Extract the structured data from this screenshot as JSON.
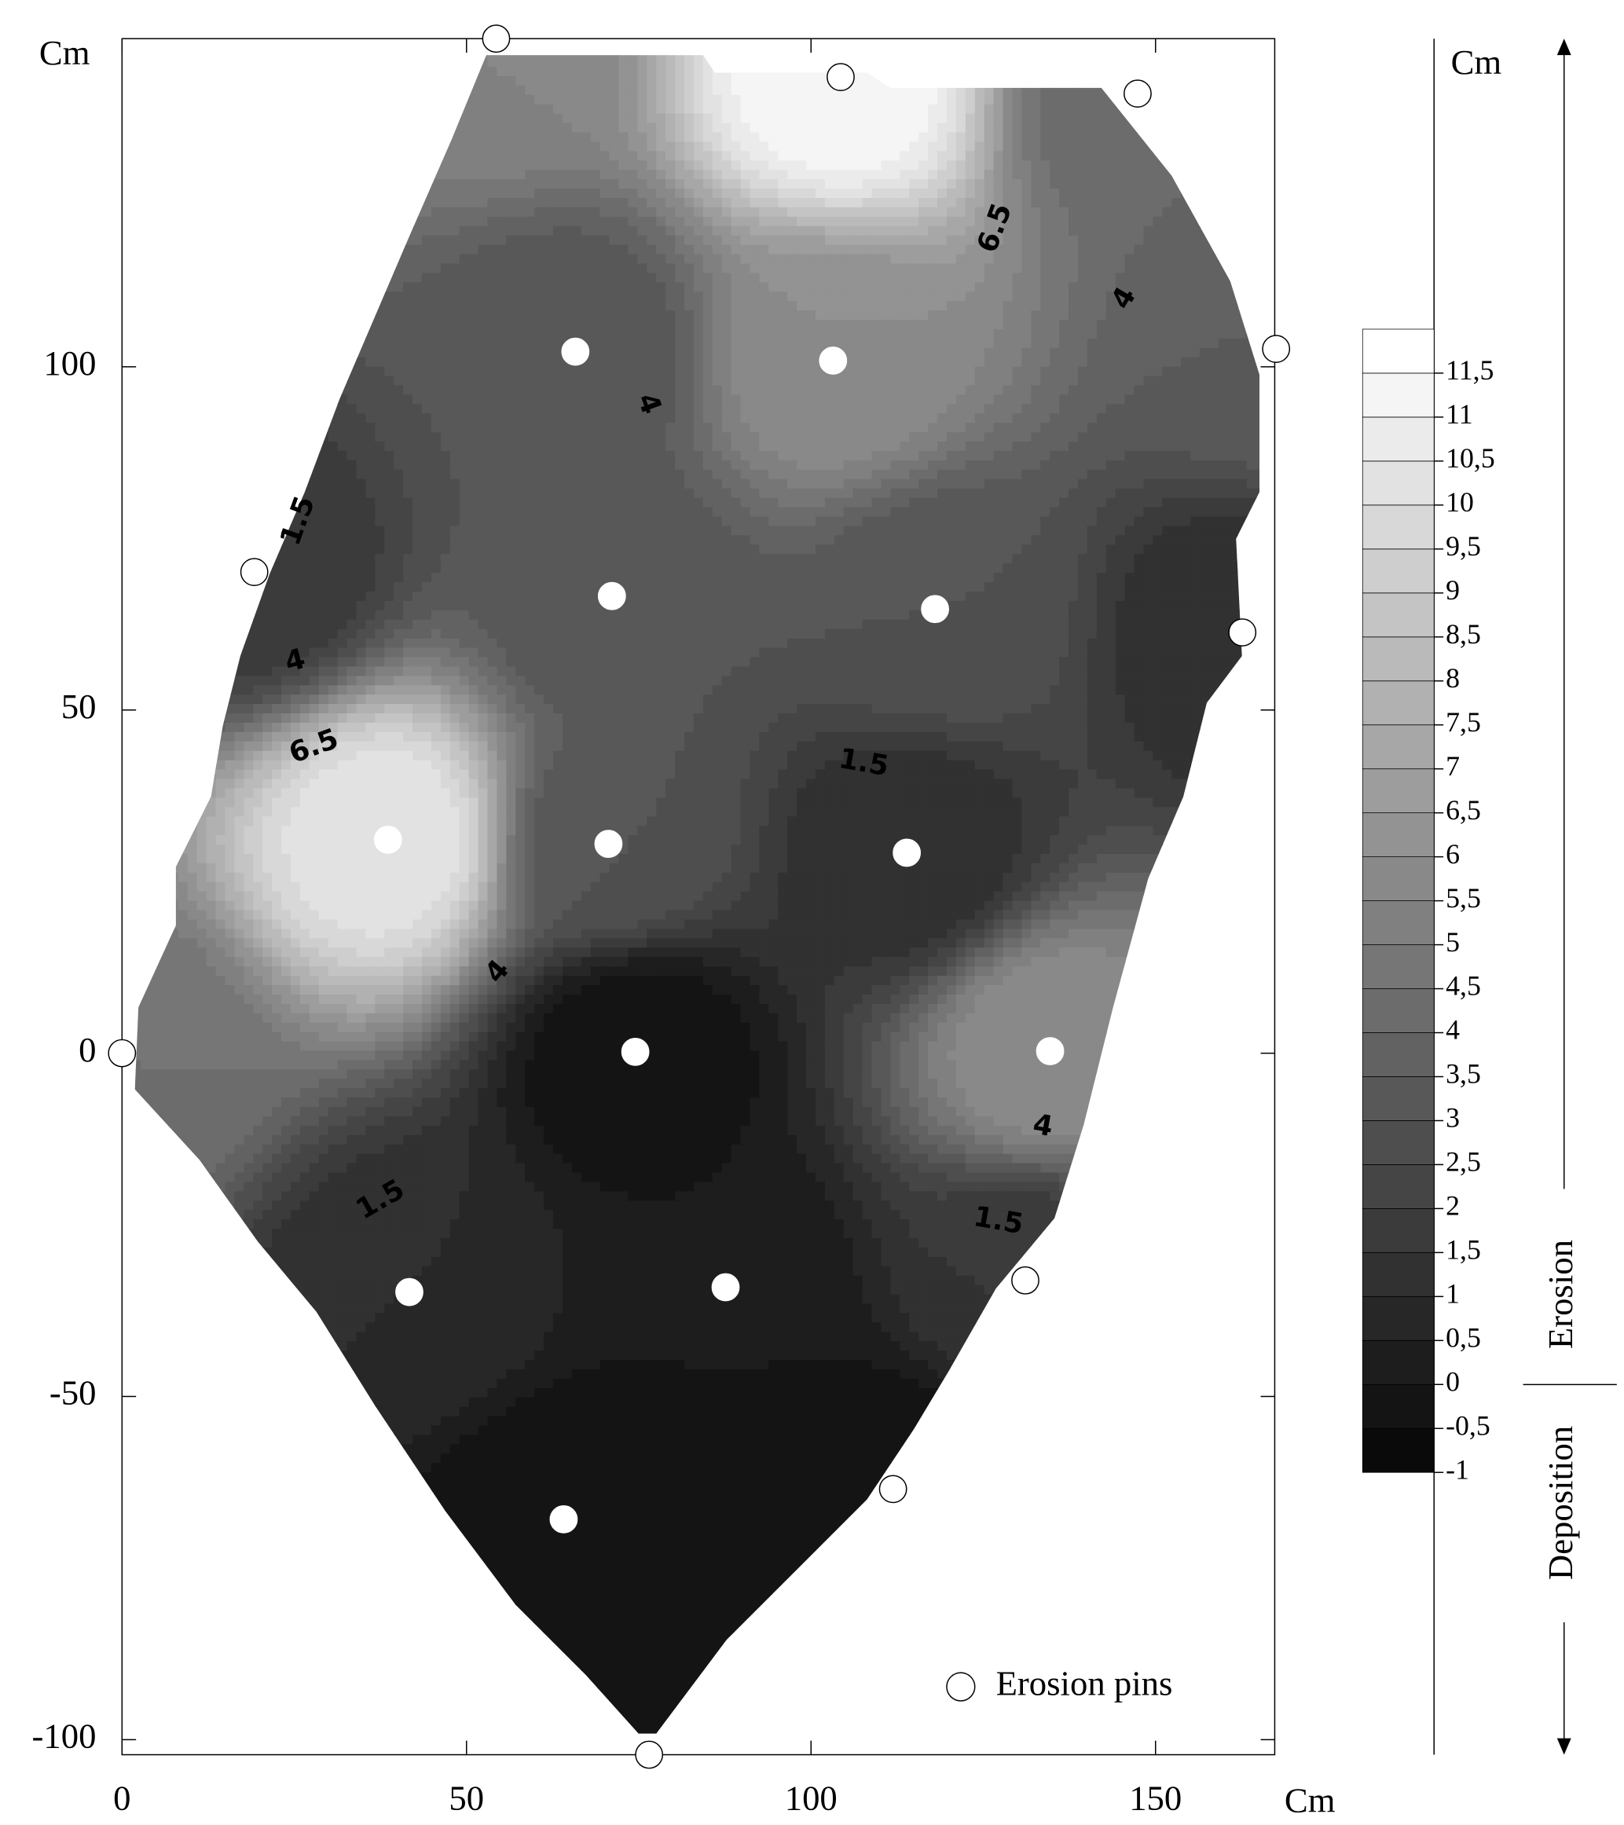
{
  "chart_data": {
    "type": "contour",
    "x_label": "Cm",
    "y_label": "Cm",
    "xlim": [
      0,
      167.3
    ],
    "ylim": [
      -102.2,
      147.8
    ],
    "xticks": [
      0,
      50,
      100,
      150
    ],
    "yticks": [
      -100,
      -50,
      0,
      50,
      100
    ],
    "pins": {
      "name": "Erosion pins",
      "x": [
        54.3,
        104.3,
        147.4,
        167.5,
        19.2,
        0,
        162.6,
        131.1,
        111.9,
        76.5,
        103.2,
        65.8,
        71.1,
        118,
        38.6,
        70.6,
        113.9,
        74.5,
        134.7,
        41.7,
        87.6,
        64.1
      ],
      "y": [
        147.8,
        142.2,
        139.8,
        102.6,
        70.1,
        0,
        61.3,
        -33.1,
        -63.5,
        -102.2,
        100.9,
        102.2,
        66.6,
        64.7,
        31.1,
        30.5,
        29.2,
        0.2,
        0.3,
        -34.8,
        -34.1,
        -67.9
      ],
      "z": [
        5.5,
        11.5,
        4,
        3.5,
        1.5,
        4.5,
        1,
        1.5,
        -0.5,
        -0.5,
        6,
        3,
        3,
        3,
        10.5,
        3,
        1,
        -0.5,
        6,
        1,
        0,
        -0.5
      ],
      "filled": [
        false,
        false,
        false,
        false,
        false,
        false,
        false,
        false,
        false,
        false,
        true,
        true,
        true,
        true,
        true,
        true,
        true,
        true,
        true,
        true,
        true,
        true
      ]
    },
    "contour_labels": [
      "6.5",
      "4",
      "4",
      "1.5",
      "4",
      "6.5",
      "1.5",
      "4",
      "4",
      "1.5",
      "1.5"
    ],
    "colorbar": {
      "title": "Cm",
      "lim": [
        -1,
        12
      ],
      "ticks": [
        -1,
        {
          "value": -0.5,
          "label": "-0,5"
        },
        0,
        {
          "value": 0.5,
          "label": "0,5"
        },
        1,
        {
          "value": 1.5,
          "label": "1,5"
        },
        2,
        {
          "value": 2.5,
          "label": "2,5"
        },
        3,
        {
          "value": 3.5,
          "label": "3,5"
        },
        4,
        {
          "value": 4.5,
          "label": "4,5"
        },
        5,
        {
          "value": 5.5,
          "label": "5,5"
        },
        6,
        {
          "value": 6.5,
          "label": "6,5"
        },
        7,
        {
          "value": 7.5,
          "label": "7,5"
        },
        8,
        {
          "value": 8.5,
          "label": "8,5"
        },
        9,
        {
          "value": 9.5,
          "label": "9,5"
        },
        10,
        {
          "value": 10.5,
          "label": "10,5"
        },
        11,
        {
          "value": 11.5,
          "label": "11,5"
        }
      ],
      "upper_label": "Erosion",
      "lower_label": "Deposition"
    }
  }
}
